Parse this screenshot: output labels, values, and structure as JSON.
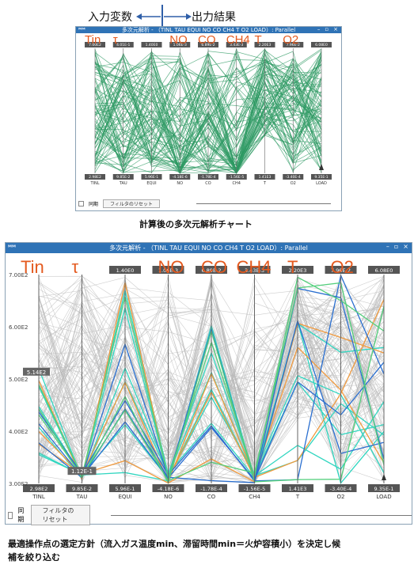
{
  "header": {
    "input_label": "入力変数",
    "output_label": "出力結果"
  },
  "top_window": {
    "title": "多次元解析 - （TINL TAU EQUI NO CO CH4 T O2 LOAD）: Parallel",
    "axis_overlays": [
      "Tin",
      "τ",
      "",
      "NO",
      "CO",
      "CH4",
      "T",
      "O2",
      ""
    ],
    "axes": [
      "TINL",
      "TAU",
      "EQUI",
      "NO",
      "CO",
      "CH4",
      "T",
      "O2",
      "LOAD"
    ],
    "top_values": [
      "7.00E2",
      "4.01E-1",
      "1.40E0",
      "1.06E-3",
      "6.89E-2",
      "3.43E-3",
      "2.20E3",
      "7.96E-2",
      "6.08E0"
    ],
    "bottom_values": [
      "2.98E2",
      "9.85E-2",
      "5.96E-1",
      "-4.18E-6",
      "-1.78E-4",
      "-1.56E-5",
      "1.41E3",
      "-3.40E-4",
      "9.35E-1"
    ],
    "sync_label": "同期",
    "reset_button": "フィルタのリセット"
  },
  "top_caption": "計算後の多次元解析チャート",
  "bottom_window": {
    "title": "多次元解析 - （TINL TAU EQUI NO CO CH4 T O2 LOAD）: Parallel",
    "axis_overlays": [
      "Tin",
      "τ",
      "",
      "NO",
      "CO",
      "CH4",
      "T",
      "O2",
      ""
    ],
    "axes": [
      "TINL",
      "TAU",
      "EQUI",
      "NO",
      "CO",
      "CH4",
      "T",
      "O2",
      "LOAD"
    ],
    "top_values": [
      "",
      "",
      "1.40E0",
      "1.06E-3",
      "6.89E-2",
      "3.43E-3",
      "2.20E3",
      "7.96E-2",
      "6.08E0"
    ],
    "bottom_values": [
      "2.98E2",
      "9.85E-2",
      "5.96E-1",
      "-4.18E-6",
      "-1.78E-4",
      "-1.56E-5",
      "1.41E3",
      "-3.40E-4",
      "9.35E-1"
    ],
    "tinl_ticks": [
      "7.00E2",
      "6.00E2",
      "5.00E2",
      "4.00E2",
      "3.00E2"
    ],
    "selected_tinl": "5.14E2",
    "selected_tau": "1.12E-1",
    "sync_label": "同期",
    "reset_button": "フィルタのリセット"
  },
  "bottom_caption_line1": "最適操作点の選定方針（流入ガス温度min、滞留時間min＝火炉容積小）を決定し候",
  "bottom_caption_line2": "補を絞り込む",
  "colors": {
    "title_bar": "#2f73b6",
    "green_lines": "#2e9a63",
    "orange_lines": "#f09a3e",
    "blue_lines": "#2a6fd0",
    "cyan_lines": "#31d6c0",
    "overlay_text": "#e45a1f"
  }
}
